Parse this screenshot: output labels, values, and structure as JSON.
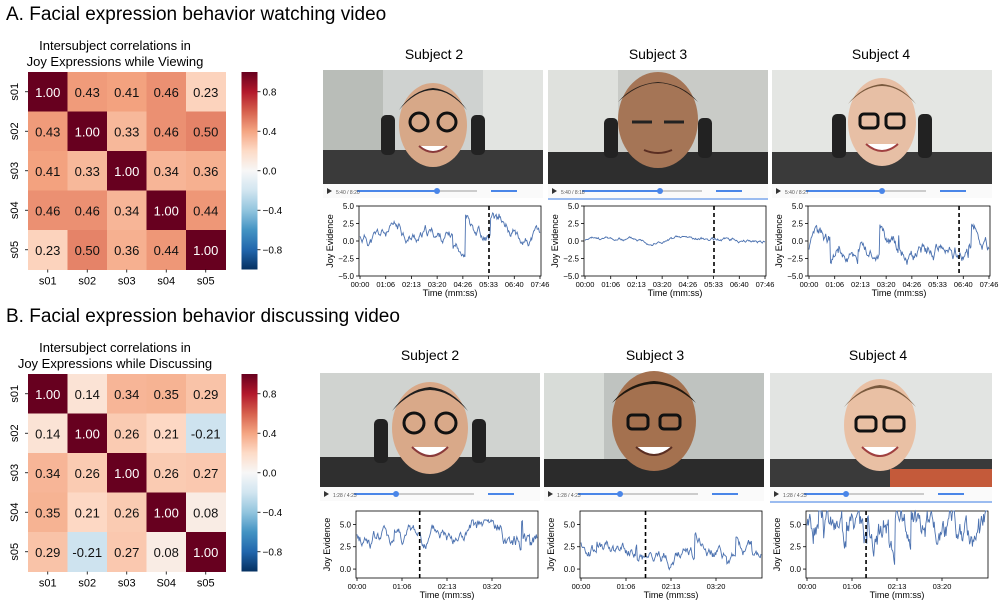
{
  "panels": [
    {
      "id": "A",
      "title": "A. Facial expression behavior watching video",
      "heatmap_title": [
        "Intersubject correlations in",
        "Joy Expressions while Viewing"
      ],
      "labels_y": [
        "s01",
        "s02",
        "s03",
        "s04",
        "s05"
      ],
      "labels_x": [
        "s01",
        "s02",
        "s03",
        "s04",
        "s05"
      ],
      "matrix": [
        [
          1.0,
          0.43,
          0.41,
          0.46,
          0.23
        ],
        [
          0.43,
          1.0,
          0.33,
          0.46,
          0.5
        ],
        [
          0.41,
          0.33,
          1.0,
          0.34,
          0.36
        ],
        [
          0.46,
          0.46,
          0.34,
          1.0,
          0.44
        ],
        [
          0.23,
          0.5,
          0.36,
          0.44,
          1.0
        ]
      ],
      "colorbar_ticks": [
        "0.8",
        "0.4",
        "0.0",
        "−0.4",
        "−0.8"
      ],
      "subjects": [
        {
          "name": "Subject 2",
          "player_time": "5:40 / 8:20"
        },
        {
          "name": "Subject 3",
          "player_time": "5:40 / 8:18"
        },
        {
          "name": "Subject 4",
          "player_time": "5:40 / 8:27"
        }
      ],
      "plot": {
        "ylabel": "Joy Evidence",
        "xlabel": "Time (mm:ss)",
        "xticks": [
          "00:00",
          "01:06",
          "02:13",
          "03:20",
          "04:26",
          "05:33",
          "06:40",
          "07:46"
        ],
        "yticks": [
          "5.0",
          "2.5",
          "0.0",
          "−2.5",
          "−5.0"
        ],
        "ylim": [
          -5,
          5
        ],
        "marker": "05:33"
      }
    },
    {
      "id": "B",
      "title": "B. Facial expression behavior discussing video",
      "heatmap_title": [
        "Intersubject correlations in",
        "Joy Expressions while Discussing"
      ],
      "labels_y": [
        "s01",
        "s02",
        "s03",
        "S04",
        "s05"
      ],
      "labels_x": [
        "s01",
        "s02",
        "s03",
        "S04",
        "s05"
      ],
      "matrix": [
        [
          1.0,
          0.14,
          0.34,
          0.35,
          0.29
        ],
        [
          0.14,
          1.0,
          0.26,
          0.21,
          -0.21
        ],
        [
          0.34,
          0.26,
          1.0,
          0.26,
          0.27
        ],
        [
          0.35,
          0.21,
          0.26,
          1.0,
          0.08
        ],
        [
          0.29,
          -0.21,
          0.27,
          0.08,
          1.0
        ]
      ],
      "colorbar_ticks": [
        "0.8",
        "0.4",
        "0.0",
        "−0.4",
        "−0.8"
      ],
      "subjects": [
        {
          "name": "Subject 2",
          "player_time": "1:28 / 4:23"
        },
        {
          "name": "Subject 3",
          "player_time": "1:28 / 4:23"
        },
        {
          "name": "Subject 4",
          "player_time": "1:28 / 4:23"
        }
      ],
      "plot": {
        "ylabel": "Joy Evidence",
        "xlabel": "Time (mm:ss)",
        "xticks": [
          "00:00",
          "01:06",
          "02:13",
          "03:20"
        ],
        "yticks": [
          "5.0",
          "2.5",
          "0.0"
        ],
        "ylim": [
          -1,
          6.5
        ],
        "marker": "01:28"
      }
    }
  ],
  "colors": {
    "diag": "#67001f",
    "pos_dark": "#b2182b",
    "mid": "#f7f7f7",
    "neg": "#2166ac",
    "line": "#4c72b0"
  }
}
